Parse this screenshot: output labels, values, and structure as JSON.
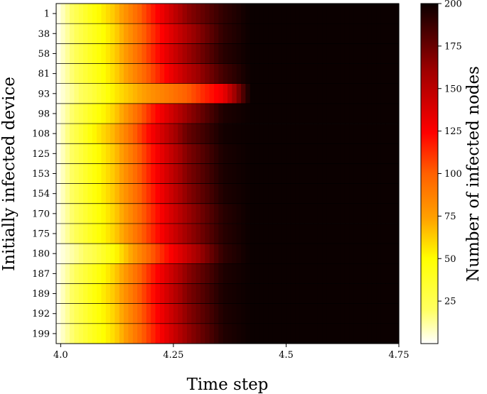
{
  "chart_data": {
    "type": "heatmap",
    "xlabel": "Time step",
    "ylabel": "Initially infected device",
    "colorbar_label": "Number of infected nodes",
    "colormap": "hot_r",
    "value_range": [
      0,
      200
    ],
    "x_range": [
      3.99,
      4.75
    ],
    "x_ticks": [
      4.0,
      4.25,
      4.5,
      4.75
    ],
    "x_tick_labels": [
      "4.0",
      "4.25",
      "4.5",
      "4.75"
    ],
    "colorbar_ticks": [
      25,
      50,
      75,
      100,
      125,
      150,
      175,
      200
    ],
    "colorbar_tick_labels": [
      "25",
      "50",
      "75",
      "100",
      "125",
      "150",
      "175",
      "200"
    ],
    "rows": [
      {
        "device": "1",
        "curve": [
          0,
          45,
          65,
          115,
          165,
          190,
          200
        ]
      },
      {
        "device": "38",
        "curve": [
          0,
          40,
          60,
          110,
          155,
          190,
          200
        ]
      },
      {
        "device": "58",
        "curve": [
          0,
          42,
          62,
          112,
          160,
          192,
          200
        ]
      },
      {
        "device": "81",
        "curve": [
          0,
          40,
          60,
          105,
          150,
          185,
          200
        ]
      },
      {
        "device": "93",
        "curve": [
          0,
          30,
          55,
          80,
          100,
          130,
          200
        ]
      },
      {
        "device": "98",
        "curve": [
          0,
          42,
          62,
          115,
          162,
          195,
          200
        ]
      },
      {
        "device": "108",
        "curve": [
          0,
          50,
          70,
          125,
          175,
          198,
          200
        ]
      },
      {
        "device": "125",
        "curve": [
          0,
          45,
          65,
          118,
          168,
          196,
          200
        ]
      },
      {
        "device": "153",
        "curve": [
          0,
          45,
          65,
          118,
          168,
          196,
          200
        ]
      },
      {
        "device": "154",
        "curve": [
          0,
          45,
          65,
          115,
          165,
          195,
          200
        ]
      },
      {
        "device": "170",
        "curve": [
          0,
          42,
          62,
          112,
          160,
          192,
          200
        ]
      },
      {
        "device": "175",
        "curve": [
          0,
          42,
          62,
          112,
          160,
          192,
          200
        ]
      },
      {
        "device": "180",
        "curve": [
          0,
          25,
          50,
          100,
          145,
          190,
          200
        ]
      },
      {
        "device": "187",
        "curve": [
          0,
          40,
          62,
          115,
          165,
          195,
          200
        ]
      },
      {
        "device": "189",
        "curve": [
          0,
          45,
          65,
          118,
          168,
          196,
          200
        ]
      },
      {
        "device": "192",
        "curve": [
          0,
          42,
          62,
          115,
          165,
          195,
          200
        ]
      },
      {
        "device": "199",
        "curve": [
          0,
          40,
          60,
          112,
          162,
          194,
          200
        ]
      }
    ],
    "curve_times": [
      3.99,
      4.07,
      4.12,
      4.2,
      4.28,
      4.36,
      4.42
    ]
  }
}
